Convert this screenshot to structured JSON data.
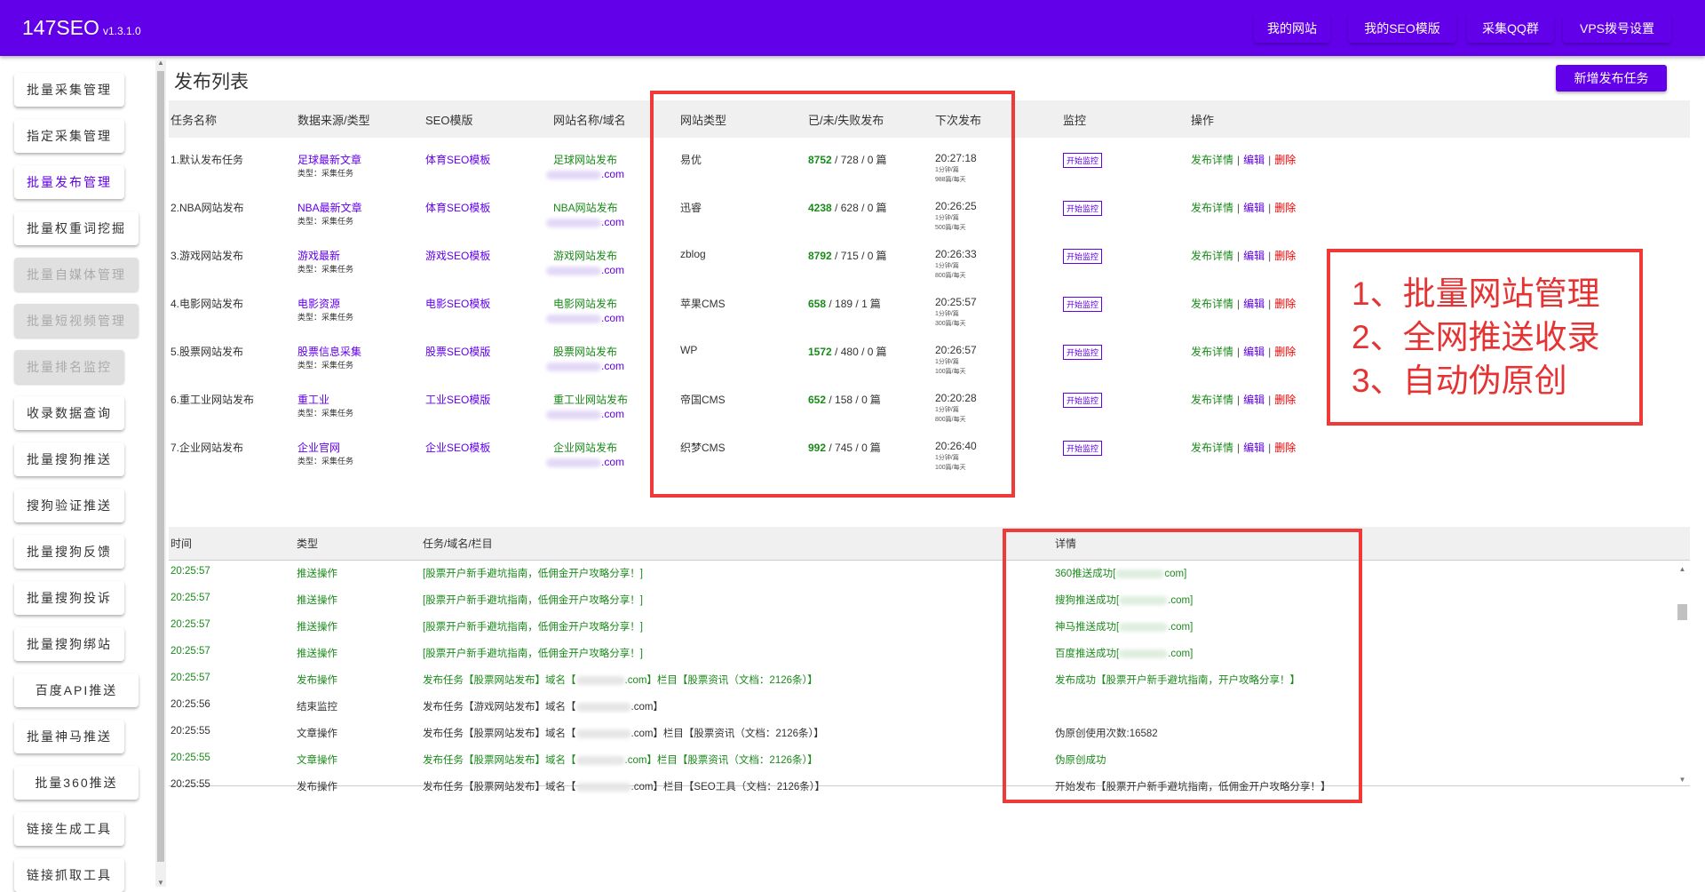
{
  "app": {
    "name": "147SEO",
    "version": "v1.3.1.0"
  },
  "nav": [
    "我的网站",
    "我的SEO模版",
    "采集QQ群",
    "VPS拨号设置"
  ],
  "sidebar": [
    {
      "label": "批量采集管理",
      "state": "normal"
    },
    {
      "label": "指定采集管理",
      "state": "normal"
    },
    {
      "label": "批量发布管理",
      "state": "active"
    },
    {
      "label": "批量权重词挖掘",
      "state": "normal"
    },
    {
      "label": "批量自媒体管理",
      "state": "disabled"
    },
    {
      "label": "批量短视频管理",
      "state": "disabled"
    },
    {
      "label": "批量排名监控",
      "state": "disabled"
    },
    {
      "label": "收录数据查询",
      "state": "normal"
    },
    {
      "label": "批量搜狗推送",
      "state": "normal"
    },
    {
      "label": "搜狗验证推送",
      "state": "normal"
    },
    {
      "label": "批量搜狗反馈",
      "state": "normal"
    },
    {
      "label": "批量搜狗投诉",
      "state": "normal"
    },
    {
      "label": "批量搜狗绑站",
      "state": "normal"
    },
    {
      "label": "百度API推送",
      "state": "normal"
    },
    {
      "label": "批量神马推送",
      "state": "normal"
    },
    {
      "label": "批量360推送",
      "state": "normal"
    },
    {
      "label": "链接生成工具",
      "state": "normal"
    },
    {
      "label": "链接抓取工具",
      "state": "normal"
    }
  ],
  "page": {
    "title": "发布列表",
    "new_task": "新增发布任务"
  },
  "table": {
    "headers": [
      "任务名称",
      "数据来源/类型",
      "SEO模版",
      "网站名称/域名",
      "网站类型",
      "已/未/失败发布",
      "下次发布",
      "监控",
      "操作"
    ],
    "type_label": "类型：采集任务",
    "monitor_label": "开始监控",
    "op_detail": "发布详情",
    "op_edit": "编辑",
    "op_delete": "删除",
    "sep": "|",
    "unit": "篇",
    "domain_suffix": ".com",
    "rows": [
      {
        "name": "1.默认发布任务",
        "source": "足球最新文章",
        "template": "体育SEO模板",
        "site": "足球网站发布",
        "cms": "易优",
        "done": "8752",
        "pending": "728",
        "failed": "0",
        "next": "20:27:18",
        "rate": "1分钟/篇",
        "daily": "988篇/每天"
      },
      {
        "name": "2.NBA网站发布",
        "source": "NBA最新文章",
        "template": "体育SEO模板",
        "site": "NBA网站发布",
        "cms": "迅睿",
        "done": "4238",
        "pending": "628",
        "failed": "0",
        "next": "20:26:25",
        "rate": "1分钟/篇",
        "daily": "500篇/每天"
      },
      {
        "name": "3.游戏网站发布",
        "source": "游戏最新",
        "template": "游戏SEO模板",
        "site": "游戏网站发布",
        "cms": "zblog",
        "done": "8792",
        "pending": "715",
        "failed": "0",
        "next": "20:26:33",
        "rate": "1分钟/篇",
        "daily": "800篇/每天"
      },
      {
        "name": "4.电影网站发布",
        "source": "电影资源",
        "template": "电影SEO模板",
        "site": "电影网站发布",
        "cms": "苹果CMS",
        "done": "658",
        "pending": "189",
        "failed": "1",
        "next": "20:25:57",
        "rate": "1分钟/篇",
        "daily": "300篇/每天"
      },
      {
        "name": "5.股票网站发布",
        "source": "股票信息采集",
        "template": "股票SEO模版",
        "site": "股票网站发布",
        "cms": "WP",
        "done": "1572",
        "pending": "480",
        "failed": "0",
        "next": "20:26:57",
        "rate": "1分钟/篇",
        "daily": "100篇/每天"
      },
      {
        "name": "6.重工业网站发布",
        "source": "重工业",
        "template": "工业SEO模版",
        "site": "重工业网站发布",
        "cms": "帝国CMS",
        "done": "652",
        "pending": "158",
        "failed": "0",
        "next": "20:20:28",
        "rate": "1分钟/篇",
        "daily": "800篇/每天"
      },
      {
        "name": "7.企业网站发布",
        "source": "企业官网",
        "template": "企业SEO模板",
        "site": "企业网站发布",
        "cms": "织梦CMS",
        "done": "992",
        "pending": "745",
        "failed": "0",
        "next": "20:26:40",
        "rate": "1分钟/篇",
        "daily": "100篇/每天"
      }
    ]
  },
  "log": {
    "headers": [
      "时间",
      "类型",
      "任务/域名/栏目",
      "详情"
    ],
    "rows": [
      {
        "time": "20:25:57",
        "type": "推送操作",
        "task": "[股票开户新手避坑指南，低佣金开户攻略分享！]",
        "detail_pre": "360推送成功[",
        "detail_post": "com]",
        "color": "green"
      },
      {
        "time": "20:25:57",
        "type": "推送操作",
        "task": "[股票开户新手避坑指南，低佣金开户攻略分享！]",
        "detail_pre": "搜狗推送成功[",
        "detail_post": ".com]",
        "color": "green"
      },
      {
        "time": "20:25:57",
        "type": "推送操作",
        "task": "[股票开户新手避坑指南，低佣金开户攻略分享！]",
        "detail_pre": "神马推送成功[",
        "detail_post": ".com]",
        "color": "green"
      },
      {
        "time": "20:25:57",
        "type": "推送操作",
        "task": "[股票开户新手避坑指南，低佣金开户攻略分享！]",
        "detail_pre": "百度推送成功[",
        "detail_post": ".com]",
        "color": "green"
      },
      {
        "time": "20:25:57",
        "type": "发布操作",
        "task": "发布任务【股票网站发布】域名【",
        "task_post": ".com】栏目【股票资讯（文档：2126条）】",
        "detail_pre": "发布成功【股票开户新手避坑指南，开户攻略分享！】",
        "color": "green"
      },
      {
        "time": "20:25:56",
        "type": "结束监控",
        "task": "发布任务【游戏网站发布】域名【",
        "task_post": ".com】",
        "detail_pre": "",
        "color": "black"
      },
      {
        "time": "20:25:55",
        "type": "文章操作",
        "task": "发布任务【股票网站发布】域名【",
        "task_post": ".com】栏目【股票资讯（文档：2126条）】",
        "detail_pre": "伪原创使用次数:16582",
        "color": "black"
      },
      {
        "time": "20:25:55",
        "type": "文章操作",
        "task": "发布任务【股票网站发布】域名【",
        "task_post": ".com】栏目【股票资讯（文档：2126条）】",
        "detail_pre": "伪原创成功",
        "color": "green"
      },
      {
        "time": "20:25:55",
        "type": "发布操作",
        "task": "发布任务【股票网站发布】域名【",
        "task_post": ".com】栏目【SEO工具（文档：2126条）】",
        "detail_pre": "开始发布【股票开户新手避坑指南，低佣金开户攻略分享！】",
        "color": "black"
      }
    ]
  },
  "annotation": [
    "1、批量网站管理",
    "2、全网推送收录",
    "3、自动伪原创"
  ],
  "colors": {
    "brand": "#6200ea",
    "success": "#1a8a1a",
    "danger": "#ee0000",
    "annotation": "#f03a3a"
  }
}
